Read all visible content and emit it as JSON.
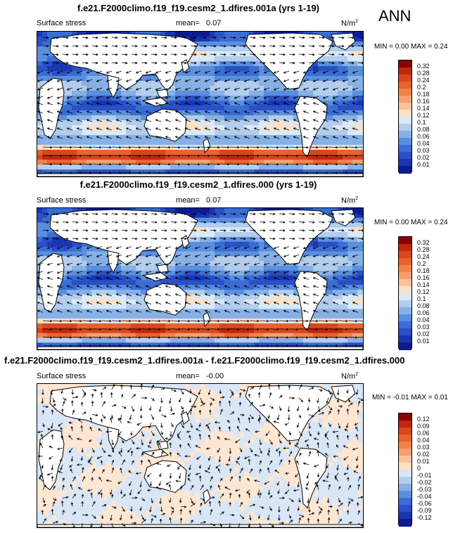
{
  "season": "ANN",
  "panels": [
    {
      "title": "f.e21.F2000climo.f19_f19.cesm2_1.dfires.001a (yrs 1-19)",
      "variable": "Surface stress",
      "mean_label": "mean=",
      "mean_value": "0.07",
      "units": "N/m",
      "units_sup": "2",
      "min_label": "MIN =",
      "min_value": "0.00",
      "max_label": "MAX =",
      "max_value": "0.24",
      "colorbar": {
        "labels": [
          "0.32",
          "0.28",
          "0.24",
          "0.2",
          "0.18",
          "0.16",
          "0.14",
          "0.12",
          "0.1",
          "0.08",
          "0.06",
          "0.04",
          "0.03",
          "0.02",
          "0.01"
        ],
        "colors": [
          "#8b0000",
          "#c1270e",
          "#d9461d",
          "#e9612f",
          "#f2824c",
          "#f6a070",
          "#fbc29a",
          "#fde1c6",
          "#d9e9f7",
          "#b2cdee",
          "#86b0e6",
          "#5a8fdd",
          "#3a6dd4",
          "#2a4fc6",
          "#1a35b0",
          "#0d1a90"
        ]
      }
    },
    {
      "title": "f.e21.F2000climo.f19_f19.cesm2_1.dfires.000 (yrs 1-19)",
      "variable": "Surface stress",
      "mean_label": "mean=",
      "mean_value": "0.07",
      "units": "N/m",
      "units_sup": "2",
      "min_label": "MIN =",
      "min_value": "0.00",
      "max_label": "MAX =",
      "max_value": "0.24",
      "colorbar": {
        "labels": [
          "0.32",
          "0.28",
          "0.24",
          "0.2",
          "0.18",
          "0.16",
          "0.14",
          "0.12",
          "0.1",
          "0.08",
          "0.06",
          "0.04",
          "0.03",
          "0.02",
          "0.01"
        ],
        "colors": [
          "#8b0000",
          "#c1270e",
          "#d9461d",
          "#e9612f",
          "#f2824c",
          "#f6a070",
          "#fbc29a",
          "#fde1c6",
          "#d9e9f7",
          "#b2cdee",
          "#86b0e6",
          "#5a8fdd",
          "#3a6dd4",
          "#2a4fc6",
          "#1a35b0",
          "#0d1a90"
        ]
      }
    },
    {
      "title": "f.e21.F2000climo.f19_f19.cesm2_1.dfires.001a - f.e21.F2000climo.f19_f19.cesm2_1.dfires.000",
      "variable": "Surface stress",
      "mean_label": "mean=",
      "mean_value": "-0.00",
      "units": "N/m",
      "units_sup": "2",
      "min_label": "MIN =",
      "min_value": "-0.01",
      "max_label": "MAX =",
      "max_value": "0.01",
      "colorbar": {
        "labels": [
          "0.12",
          "0.09",
          "0.06",
          "0.04",
          "0.03",
          "0.02",
          "0.01",
          "0",
          "-0.01",
          "-0.02",
          "-0.03",
          "-0.04",
          "-0.06",
          "-0.09",
          "-0.12"
        ],
        "colors": [
          "#8b0000",
          "#c1270e",
          "#d9461d",
          "#e9612f",
          "#f2824c",
          "#f6a070",
          "#fbc29a",
          "#fde1c6",
          "#d6e6f5",
          "#b2cdee",
          "#86b0e6",
          "#5a8fdd",
          "#3a6dd4",
          "#2a4fc6",
          "#1a35b0",
          "#0d1a90"
        ]
      }
    }
  ],
  "chart_data": {
    "type": "heatmap",
    "field": "Surface stress",
    "units": "N/m2",
    "season": "ANN",
    "panels": [
      {
        "case": "f.e21.F2000climo.f19_f19.cesm2_1.dfires.001a (yrs 1-19)",
        "mean": 0.07,
        "min": 0.0,
        "max": 0.24,
        "contour_levels": [
          0.01,
          0.02,
          0.03,
          0.04,
          0.06,
          0.08,
          0.1,
          0.12,
          0.14,
          0.16,
          0.18,
          0.2,
          0.24,
          0.28,
          0.32
        ]
      },
      {
        "case": "f.e21.F2000climo.f19_f19.cesm2_1.dfires.000 (yrs 1-19)",
        "mean": 0.07,
        "min": 0.0,
        "max": 0.24,
        "contour_levels": [
          0.01,
          0.02,
          0.03,
          0.04,
          0.06,
          0.08,
          0.1,
          0.12,
          0.14,
          0.16,
          0.18,
          0.2,
          0.24,
          0.28,
          0.32
        ]
      },
      {
        "case": "f.e21.F2000climo.f19_f19.cesm2_1.dfires.001a - f.e21.F2000climo.f19_f19.cesm2_1.dfires.000",
        "mean": -0.0,
        "min": -0.01,
        "max": 0.01,
        "contour_levels": [
          -0.12,
          -0.09,
          -0.06,
          -0.04,
          -0.03,
          -0.02,
          -0.01,
          0,
          0.01,
          0.02,
          0.03,
          0.04,
          0.06,
          0.09,
          0.12
        ]
      }
    ]
  }
}
